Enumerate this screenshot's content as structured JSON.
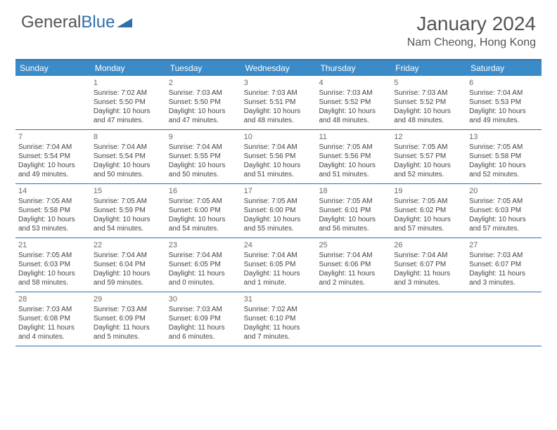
{
  "logo": {
    "text1": "General",
    "text2": "Blue"
  },
  "title": "January 2024",
  "location": "Nam Cheong, Hong Kong",
  "header_bg": "#3b8bc9",
  "border_color": "#2f6fab",
  "dow": [
    "Sunday",
    "Monday",
    "Tuesday",
    "Wednesday",
    "Thursday",
    "Friday",
    "Saturday"
  ],
  "weeks": [
    [
      {
        "num": "",
        "sunrise": "",
        "sunset": "",
        "daylight1": "",
        "daylight2": ""
      },
      {
        "num": "1",
        "sunrise": "Sunrise: 7:02 AM",
        "sunset": "Sunset: 5:50 PM",
        "daylight1": "Daylight: 10 hours",
        "daylight2": "and 47 minutes."
      },
      {
        "num": "2",
        "sunrise": "Sunrise: 7:03 AM",
        "sunset": "Sunset: 5:50 PM",
        "daylight1": "Daylight: 10 hours",
        "daylight2": "and 47 minutes."
      },
      {
        "num": "3",
        "sunrise": "Sunrise: 7:03 AM",
        "sunset": "Sunset: 5:51 PM",
        "daylight1": "Daylight: 10 hours",
        "daylight2": "and 48 minutes."
      },
      {
        "num": "4",
        "sunrise": "Sunrise: 7:03 AM",
        "sunset": "Sunset: 5:52 PM",
        "daylight1": "Daylight: 10 hours",
        "daylight2": "and 48 minutes."
      },
      {
        "num": "5",
        "sunrise": "Sunrise: 7:03 AM",
        "sunset": "Sunset: 5:52 PM",
        "daylight1": "Daylight: 10 hours",
        "daylight2": "and 48 minutes."
      },
      {
        "num": "6",
        "sunrise": "Sunrise: 7:04 AM",
        "sunset": "Sunset: 5:53 PM",
        "daylight1": "Daylight: 10 hours",
        "daylight2": "and 49 minutes."
      }
    ],
    [
      {
        "num": "7",
        "sunrise": "Sunrise: 7:04 AM",
        "sunset": "Sunset: 5:54 PM",
        "daylight1": "Daylight: 10 hours",
        "daylight2": "and 49 minutes."
      },
      {
        "num": "8",
        "sunrise": "Sunrise: 7:04 AM",
        "sunset": "Sunset: 5:54 PM",
        "daylight1": "Daylight: 10 hours",
        "daylight2": "and 50 minutes."
      },
      {
        "num": "9",
        "sunrise": "Sunrise: 7:04 AM",
        "sunset": "Sunset: 5:55 PM",
        "daylight1": "Daylight: 10 hours",
        "daylight2": "and 50 minutes."
      },
      {
        "num": "10",
        "sunrise": "Sunrise: 7:04 AM",
        "sunset": "Sunset: 5:56 PM",
        "daylight1": "Daylight: 10 hours",
        "daylight2": "and 51 minutes."
      },
      {
        "num": "11",
        "sunrise": "Sunrise: 7:05 AM",
        "sunset": "Sunset: 5:56 PM",
        "daylight1": "Daylight: 10 hours",
        "daylight2": "and 51 minutes."
      },
      {
        "num": "12",
        "sunrise": "Sunrise: 7:05 AM",
        "sunset": "Sunset: 5:57 PM",
        "daylight1": "Daylight: 10 hours",
        "daylight2": "and 52 minutes."
      },
      {
        "num": "13",
        "sunrise": "Sunrise: 7:05 AM",
        "sunset": "Sunset: 5:58 PM",
        "daylight1": "Daylight: 10 hours",
        "daylight2": "and 52 minutes."
      }
    ],
    [
      {
        "num": "14",
        "sunrise": "Sunrise: 7:05 AM",
        "sunset": "Sunset: 5:58 PM",
        "daylight1": "Daylight: 10 hours",
        "daylight2": "and 53 minutes."
      },
      {
        "num": "15",
        "sunrise": "Sunrise: 7:05 AM",
        "sunset": "Sunset: 5:59 PM",
        "daylight1": "Daylight: 10 hours",
        "daylight2": "and 54 minutes."
      },
      {
        "num": "16",
        "sunrise": "Sunrise: 7:05 AM",
        "sunset": "Sunset: 6:00 PM",
        "daylight1": "Daylight: 10 hours",
        "daylight2": "and 54 minutes."
      },
      {
        "num": "17",
        "sunrise": "Sunrise: 7:05 AM",
        "sunset": "Sunset: 6:00 PM",
        "daylight1": "Daylight: 10 hours",
        "daylight2": "and 55 minutes."
      },
      {
        "num": "18",
        "sunrise": "Sunrise: 7:05 AM",
        "sunset": "Sunset: 6:01 PM",
        "daylight1": "Daylight: 10 hours",
        "daylight2": "and 56 minutes."
      },
      {
        "num": "19",
        "sunrise": "Sunrise: 7:05 AM",
        "sunset": "Sunset: 6:02 PM",
        "daylight1": "Daylight: 10 hours",
        "daylight2": "and 57 minutes."
      },
      {
        "num": "20",
        "sunrise": "Sunrise: 7:05 AM",
        "sunset": "Sunset: 6:03 PM",
        "daylight1": "Daylight: 10 hours",
        "daylight2": "and 57 minutes."
      }
    ],
    [
      {
        "num": "21",
        "sunrise": "Sunrise: 7:05 AM",
        "sunset": "Sunset: 6:03 PM",
        "daylight1": "Daylight: 10 hours",
        "daylight2": "and 58 minutes."
      },
      {
        "num": "22",
        "sunrise": "Sunrise: 7:04 AM",
        "sunset": "Sunset: 6:04 PM",
        "daylight1": "Daylight: 10 hours",
        "daylight2": "and 59 minutes."
      },
      {
        "num": "23",
        "sunrise": "Sunrise: 7:04 AM",
        "sunset": "Sunset: 6:05 PM",
        "daylight1": "Daylight: 11 hours",
        "daylight2": "and 0 minutes."
      },
      {
        "num": "24",
        "sunrise": "Sunrise: 7:04 AM",
        "sunset": "Sunset: 6:05 PM",
        "daylight1": "Daylight: 11 hours",
        "daylight2": "and 1 minute."
      },
      {
        "num": "25",
        "sunrise": "Sunrise: 7:04 AM",
        "sunset": "Sunset: 6:06 PM",
        "daylight1": "Daylight: 11 hours",
        "daylight2": "and 2 minutes."
      },
      {
        "num": "26",
        "sunrise": "Sunrise: 7:04 AM",
        "sunset": "Sunset: 6:07 PM",
        "daylight1": "Daylight: 11 hours",
        "daylight2": "and 3 minutes."
      },
      {
        "num": "27",
        "sunrise": "Sunrise: 7:03 AM",
        "sunset": "Sunset: 6:07 PM",
        "daylight1": "Daylight: 11 hours",
        "daylight2": "and 3 minutes."
      }
    ],
    [
      {
        "num": "28",
        "sunrise": "Sunrise: 7:03 AM",
        "sunset": "Sunset: 6:08 PM",
        "daylight1": "Daylight: 11 hours",
        "daylight2": "and 4 minutes."
      },
      {
        "num": "29",
        "sunrise": "Sunrise: 7:03 AM",
        "sunset": "Sunset: 6:09 PM",
        "daylight1": "Daylight: 11 hours",
        "daylight2": "and 5 minutes."
      },
      {
        "num": "30",
        "sunrise": "Sunrise: 7:03 AM",
        "sunset": "Sunset: 6:09 PM",
        "daylight1": "Daylight: 11 hours",
        "daylight2": "and 6 minutes."
      },
      {
        "num": "31",
        "sunrise": "Sunrise: 7:02 AM",
        "sunset": "Sunset: 6:10 PM",
        "daylight1": "Daylight: 11 hours",
        "daylight2": "and 7 minutes."
      },
      {
        "num": "",
        "sunrise": "",
        "sunset": "",
        "daylight1": "",
        "daylight2": ""
      },
      {
        "num": "",
        "sunrise": "",
        "sunset": "",
        "daylight1": "",
        "daylight2": ""
      },
      {
        "num": "",
        "sunrise": "",
        "sunset": "",
        "daylight1": "",
        "daylight2": ""
      }
    ]
  ]
}
